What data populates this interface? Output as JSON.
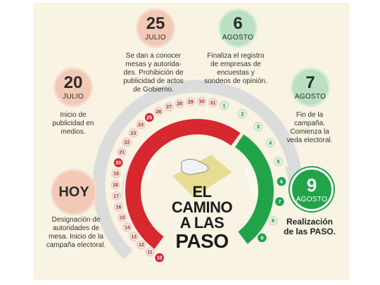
{
  "title": {
    "l1": "EL",
    "l2": "CAMINO",
    "l3": "A LAS",
    "l4": "PASO"
  },
  "arc_labels": {
    "julio": "JULIO",
    "agosto": "AGOSTO"
  },
  "milestones": {
    "hoy": {
      "day": "HOY",
      "text": "Designación de autoridades de mesa. Inicio de la campaña electoral."
    },
    "jul20": {
      "day": "20",
      "month": "JULIO",
      "text": "Inicio de publicidad en medios."
    },
    "jul25": {
      "day": "25",
      "month": "JULIO",
      "text": "Se dan a conocer mesas y autorida-des. Prohibición de publicidad de actos de Gobierno."
    },
    "aug6": {
      "day": "6",
      "month": "AGOSTO",
      "text": "Finaliza el registro de empresas de encuestas y sondeos de opinión."
    },
    "aug7": {
      "day": "7",
      "month": "AGOSTO",
      "text": "Fin de la campaña. Comienza la veda electoral."
    },
    "aug9": {
      "day": "9",
      "month": "AGOSTO",
      "text": "Realización de las PASO."
    }
  },
  "calendar": {
    "july": [
      "10",
      "11",
      "12",
      "13",
      "14",
      "15",
      "16",
      "17",
      "18",
      "19",
      "20",
      "21",
      "22",
      "23",
      "24",
      "25",
      "26",
      "27",
      "28",
      "29",
      "30",
      "31"
    ],
    "august": [
      "1",
      "2",
      "3",
      "4",
      "5",
      "6",
      "7",
      "8",
      "9"
    ],
    "highlighted": [
      "10",
      "20",
      "25",
      "6",
      "7",
      "9"
    ]
  },
  "colors": {
    "red": "#d7282f",
    "green": "#21a34a",
    "gray": "#d9d9d9",
    "cream": "#f8f3e2",
    "ballot": "#e7dc93"
  }
}
